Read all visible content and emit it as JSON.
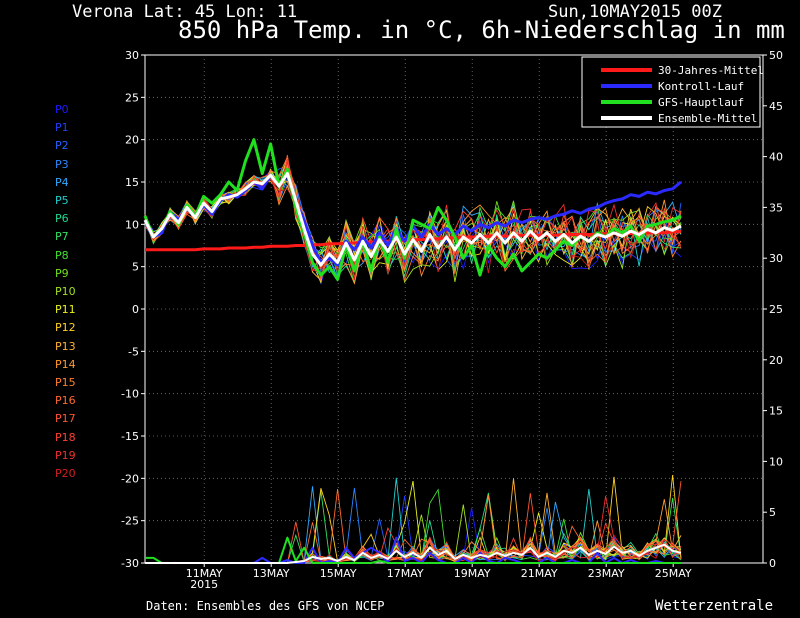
{
  "header": {
    "location": "Verona  Lat: 45 Lon: 11",
    "date": "Sun,10MAY2015 00Z",
    "title": "850 hPa Temp. in °C, 6h-Niederschlag in mm"
  },
  "footer": {
    "source": "Daten: Ensembles des GFS von NCEP",
    "brand": "Wetterzentrale"
  },
  "members": [
    "P0",
    "P1",
    "P2",
    "P3",
    "P4",
    "P5",
    "P6",
    "P7",
    "P8",
    "P9",
    "P10",
    "P11",
    "P12",
    "P13",
    "P14",
    "P15",
    "P16",
    "P17",
    "P18",
    "P19",
    "P20"
  ],
  "member_colors": [
    "#1b1bff",
    "#1f3fff",
    "#2262ff",
    "#2a86ff",
    "#30aaff",
    "#1fd0d0",
    "#20d890",
    "#30e060",
    "#40e030",
    "#70e020",
    "#a0e020",
    "#e8f020",
    "#ffd020",
    "#ffb030",
    "#ff9a30",
    "#ff8030",
    "#ff6a30",
    "#ff5530",
    "#ff4030",
    "#ee3030",
    "#d02020"
  ],
  "chart_data": {
    "type": "line",
    "x_tick_labels": [
      "11MAY\n2015",
      "13MAY",
      "15MAY",
      "17MAY",
      "19MAY",
      "21MAY",
      "23MAY",
      "25MAY"
    ],
    "y_left_ticks": [
      30,
      25,
      20,
      15,
      10,
      5,
      0,
      -5,
      -10,
      -15,
      -20,
      -25,
      -30
    ],
    "y_right_ticks": [
      50,
      45,
      40,
      35,
      30,
      25,
      20,
      15,
      10,
      5,
      0
    ],
    "ylim_left": [
      -30,
      30
    ],
    "ylim_right": [
      0,
      50
    ],
    "grid": true,
    "legend_position": "top-right",
    "legend": [
      {
        "name": "30-Jahres-Mittel",
        "color": "#ff1a1a"
      },
      {
        "name": "Kontroll-Lauf",
        "color": "#2a2aff"
      },
      {
        "name": "GFS-Hauptlauf",
        "color": "#20e020"
      },
      {
        "name": "Ensemble-Mittel",
        "color": "#ffffff"
      }
    ],
    "step_hours": 6,
    "start_day": 10.0,
    "series": [
      {
        "name": "30-Jahres-Mittel",
        "color": "#ff1a1a",
        "axis": "left",
        "values": [
          7.0,
          7.0,
          7.0,
          7.0,
          7.0,
          7.0,
          7.0,
          7.1,
          7.1,
          7.1,
          7.2,
          7.2,
          7.2,
          7.3,
          7.3,
          7.4,
          7.4,
          7.4,
          7.5,
          7.5,
          7.6,
          7.6,
          7.7,
          7.7,
          7.8,
          7.8,
          7.9,
          7.9,
          8.0,
          8.0,
          8.1,
          8.1,
          8.2,
          8.2,
          8.3,
          8.3,
          8.4,
          8.4,
          8.5,
          8.5,
          8.5,
          8.6,
          8.6,
          8.6,
          8.6,
          8.7,
          8.7,
          8.7,
          8.7,
          8.7,
          8.8,
          8.8,
          8.8,
          8.8,
          8.8,
          8.9,
          8.9,
          8.9,
          8.9,
          8.9,
          9.0,
          9.0,
          9.0,
          9.1,
          9.2
        ]
      },
      {
        "name": "Kontroll-Lauf",
        "color": "#2a2aff",
        "axis": "left",
        "values": [
          10.5,
          8.5,
          9,
          11.5,
          10.5,
          12,
          10.8,
          12.3,
          11.2,
          12.8,
          13.5,
          13.2,
          14,
          15,
          14.2,
          15.8,
          14.6,
          16.2,
          12.5,
          10.5,
          7.5,
          5.5,
          6.0,
          5.2,
          8.0,
          7.0,
          8.5,
          7.2,
          9.0,
          7.5,
          9.5,
          8.0,
          9.8,
          8.5,
          10.0,
          8.8,
          9.5,
          8.8,
          9.8,
          9.2,
          10.0,
          9.6,
          10.2,
          9.8,
          10.5,
          10.2,
          10.6,
          10.8,
          10.6,
          11.0,
          11.2,
          11.6,
          11.3,
          11.8,
          12.0,
          12.5,
          12.8,
          13.0,
          13.5,
          13.3,
          13.8,
          13.6,
          14.0,
          14.2,
          15.0
        ]
      },
      {
        "name": "GFS-Hauptlauf",
        "color": "#20e020",
        "axis": "left",
        "values": [
          11,
          8.5,
          9.5,
          11.5,
          10,
          12.3,
          11,
          13.3,
          12.5,
          13.5,
          15,
          14,
          17.5,
          20,
          16,
          19.5,
          14.5,
          16.5,
          12,
          9,
          5.5,
          4,
          5,
          3.5,
          7.5,
          4.5,
          8,
          4.5,
          8.5,
          5.5,
          9.5,
          6,
          10.5,
          10,
          9.5,
          12,
          10.5,
          8.5,
          6,
          7.5,
          4,
          7.5,
          6,
          5,
          6.5,
          4.5,
          5.5,
          6.5,
          6,
          7,
          8,
          7.5,
          8.5,
          8,
          9,
          8.5,
          9.5,
          9,
          9.8,
          8,
          9.8,
          10,
          10.3,
          10.5,
          11
        ]
      },
      {
        "name": "Ensemble-Mittel",
        "color": "#ffffff",
        "axis": "left",
        "values": [
          10.5,
          8.5,
          9.5,
          11.2,
          10.2,
          12,
          10.8,
          12.5,
          11.5,
          13,
          13.2,
          13.5,
          14.2,
          15,
          14.8,
          15.8,
          14.5,
          16,
          12.8,
          9.5,
          6.5,
          5.2,
          6.5,
          5.5,
          7.8,
          5.8,
          8.0,
          6.2,
          8.2,
          6.8,
          8.5,
          6.5,
          8.2,
          6.8,
          8.8,
          7.2,
          8.5,
          7.0,
          8.5,
          7.8,
          8.8,
          7.8,
          9.0,
          7.8,
          9.0,
          8.0,
          9.2,
          8.2,
          9.0,
          8.0,
          8.8,
          7.8,
          8.6,
          8.0,
          8.8,
          8.5,
          9.0,
          8.6,
          9.2,
          8.8,
          9.4,
          9.0,
          9.6,
          9.3,
          9.8
        ]
      },
      {
        "name": "Kontroll-Lauf precipitation",
        "color": "#2a2aff",
        "axis": "right",
        "values": [
          0,
          0,
          0,
          0,
          0,
          0,
          0,
          0,
          0,
          0,
          0,
          0,
          0,
          0,
          0.5,
          0,
          0,
          0.3,
          0,
          0,
          1.5,
          0,
          0.2,
          0,
          1.5,
          0.5,
          1.0,
          1.5,
          1.0,
          0,
          2.5,
          0.2,
          0.5,
          0,
          1.0,
          0.3,
          0,
          0,
          0.5,
          0,
          1.0,
          0.2,
          0,
          0.5,
          0.3,
          0,
          0,
          0,
          0.5,
          0,
          0,
          0.3,
          0,
          0,
          1.0,
          0,
          0.5,
          0,
          0.3,
          0,
          0,
          0.2,
          0,
          0,
          0
        ]
      },
      {
        "name": "GFS-Hauptlauf precipitation",
        "color": "#20e020",
        "axis": "right",
        "values": [
          0.5,
          0.5,
          0,
          0,
          0,
          0,
          0,
          0,
          0,
          0,
          0,
          0,
          0,
          0,
          0,
          0,
          0,
          2.5,
          0.2,
          1.5,
          0,
          0,
          0,
          0,
          0,
          0,
          0,
          0,
          0.2,
          0,
          0,
          0,
          0,
          0,
          0,
          0,
          0,
          0,
          0,
          0,
          0,
          0,
          0,
          0,
          0,
          0,
          0,
          0,
          0,
          0,
          0,
          0,
          0,
          0,
          0,
          0,
          0,
          0,
          0,
          0,
          0,
          0,
          0,
          0,
          0
        ]
      },
      {
        "name": "Ensemble-Mittel precipitation",
        "color": "#ffffff",
        "axis": "right",
        "values": [
          0,
          0,
          0,
          0,
          0,
          0,
          0,
          0,
          0,
          0,
          0,
          0,
          0,
          0,
          0,
          0,
          0,
          0,
          0.1,
          0.2,
          0.6,
          0.4,
          0.5,
          0.2,
          0.6,
          0.3,
          1.0,
          0.5,
          0.8,
          0.4,
          1.2,
          0.6,
          1.0,
          0.5,
          1.5,
          0.8,
          1.2,
          0.4,
          0.8,
          0.5,
          0.8,
          0.6,
          1.0,
          0.7,
          1.0,
          0.8,
          1.5,
          0.6,
          1.0,
          0.6,
          1.2,
          1.0,
          1.5,
          0.8,
          1.2,
          0.9,
          1.6,
          1.0,
          1.2,
          0.7,
          1.2,
          1.5,
          1.8,
          1.2,
          1.0
        ]
      }
    ]
  }
}
